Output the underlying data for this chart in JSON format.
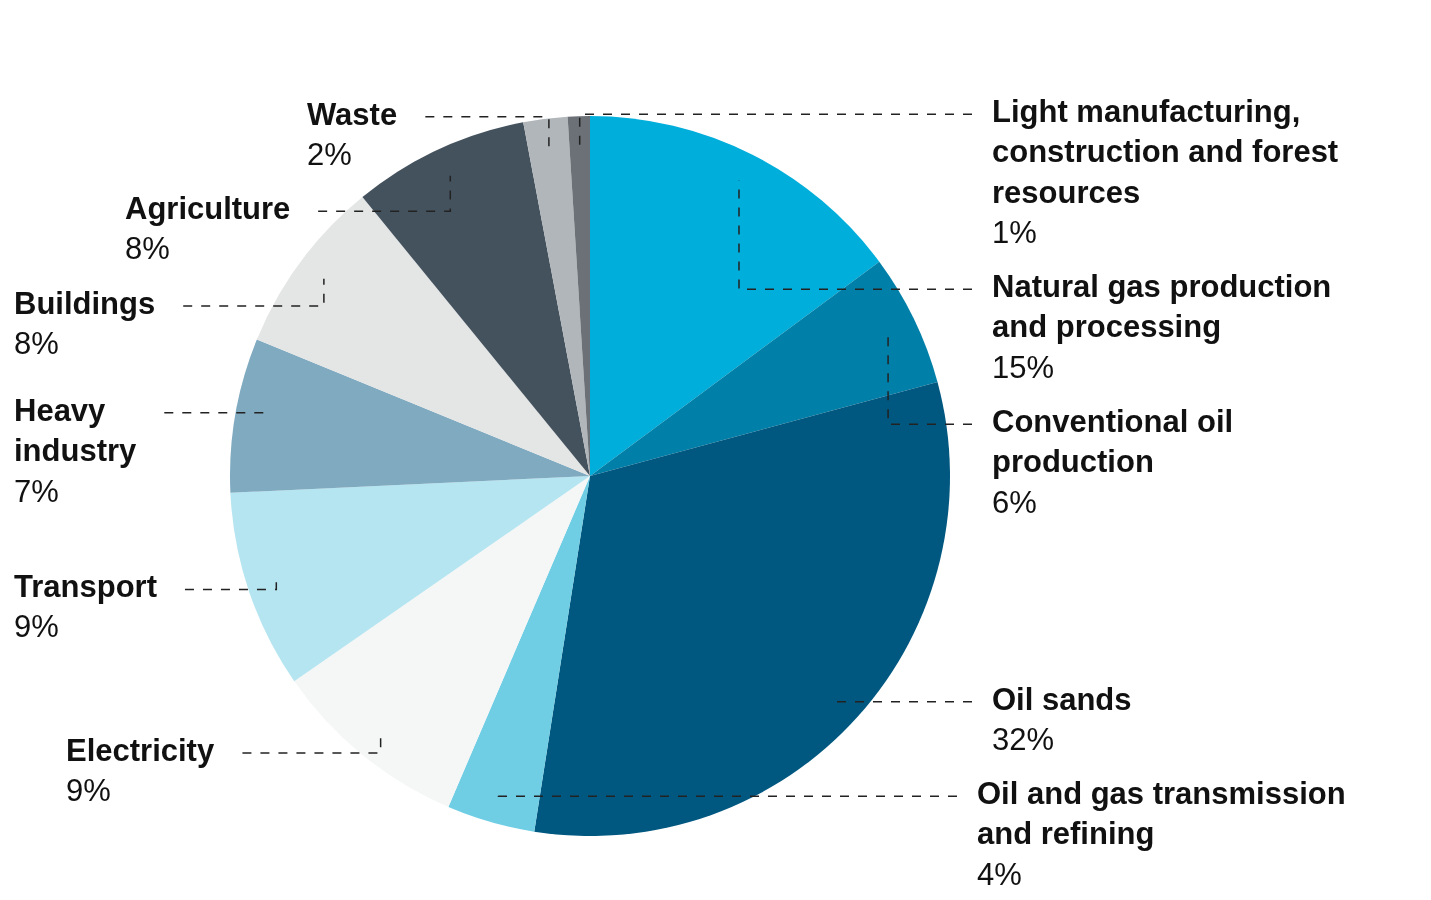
{
  "chart_data": {
    "type": "pie",
    "categories": [
      "Natural gas production and processing",
      "Conventional oil production",
      "Oil sands",
      "Oil and gas transmission and refining",
      "Electricity",
      "Transport",
      "Heavy industry",
      "Buildings",
      "Agriculture",
      "Waste",
      "Light manufacturing, construction and forest resources"
    ],
    "values": [
      15,
      6,
      32,
      4,
      9,
      9,
      7,
      8,
      8,
      2,
      1
    ],
    "value_labels": [
      "15%",
      "6%",
      "32%",
      "4%",
      "9%",
      "9%",
      "7%",
      "8%",
      "8%",
      "2%",
      "1%"
    ],
    "colors": [
      "#00aedb",
      "#0080a8",
      "#005880",
      "#6fcde4",
      "#f5f6f6",
      "#b5e5f0",
      "#7faac0",
      "#e4e5e5",
      "#44525e",
      "#b1b6ba",
      "#6b7177"
    ],
    "legend": false
  }
}
